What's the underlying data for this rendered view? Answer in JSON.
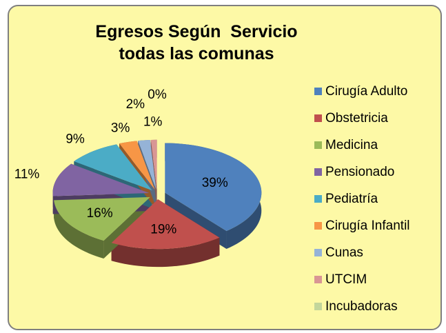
{
  "chart_data": {
    "type": "pie",
    "title": "Egresos Según  Servicio todas las comunas",
    "categories": [
      "Cirugía Adulto",
      "Obstetricia",
      "Medicina",
      "Pensionado",
      "Pediatría",
      "Cirugía Infantil",
      "Cunas",
      "UTCIM",
      "Incubadoras"
    ],
    "values": [
      39,
      19,
      16,
      11,
      9,
      3,
      2,
      1,
      0
    ],
    "value_labels": [
      "39%",
      "19%",
      "16%",
      "11%",
      "9%",
      "3%",
      "2%",
      "1%",
      "0%"
    ],
    "colors": [
      "#4f81bd",
      "#c0504d",
      "#9bbb59",
      "#8064a2",
      "#4bacc6",
      "#f79646",
      "#95b3d7",
      "#d99694",
      "#c3d69b"
    ],
    "legend": "right"
  }
}
